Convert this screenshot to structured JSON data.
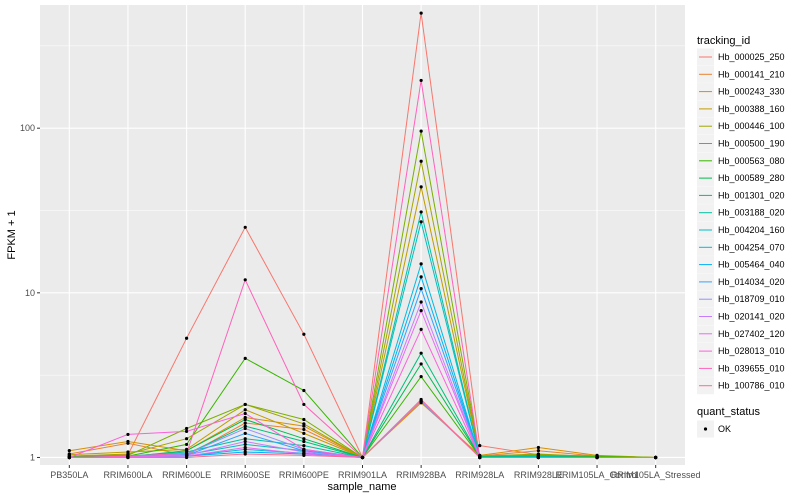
{
  "chart_data": {
    "type": "line",
    "xlabel": "sample_name",
    "ylabel": "FPKM + 1",
    "yscale": "log10",
    "ylim": [
      0.9,
      560
    ],
    "yticks": [
      {
        "value": 1,
        "label": "1"
      },
      {
        "value": 10,
        "label": "10"
      },
      {
        "value": 100,
        "label": "100"
      }
    ],
    "categories": [
      "PB350LA",
      "RRIM600LA",
      "RRIM600LE",
      "RRIM600SE",
      "RRIM600PE",
      "RRIM901LA",
      "RRIM928BA",
      "RRIM928LA",
      "RRIM928LE",
      "RRIM105LA_Control",
      "RRIM105LA_Stressed"
    ],
    "legend_title": "tracking_id",
    "series": [
      {
        "name": "Hb_000025_250",
        "color": "#F8766D",
        "values": [
          1.02,
          1.04,
          5.3,
          25.0,
          5.6,
          1.0,
          500,
          1.18,
          1.04,
          1.02,
          1.0
        ]
      },
      {
        "name": "Hb_000141_210",
        "color": "#EA8331",
        "values": [
          1.05,
          1.22,
          1.03,
          1.62,
          1.48,
          1.0,
          2.2,
          1.02,
          1.1,
          1.02,
          1.0
        ]
      },
      {
        "name": "Hb_000243_330",
        "color": "#D89000",
        "values": [
          1.1,
          1.25,
          1.1,
          1.75,
          1.55,
          1.0,
          2.15,
          1.03,
          1.15,
          1.03,
          1.0
        ]
      },
      {
        "name": "Hb_000388_160",
        "color": "#C09B00",
        "values": [
          1.04,
          1.08,
          1.12,
          1.95,
          1.4,
          1.0,
          44,
          1.02,
          1.05,
          1.01,
          1.0
        ]
      },
      {
        "name": "Hb_000446_100",
        "color": "#A3A500",
        "values": [
          1.02,
          1.05,
          1.3,
          2.1,
          1.6,
          1.0,
          63,
          1.01,
          1.03,
          1.01,
          1.0
        ]
      },
      {
        "name": "Hb_000500_190",
        "color": "#7CAE00",
        "values": [
          1.01,
          1.03,
          1.5,
          2.1,
          1.7,
          1.0,
          96,
          1.02,
          1.04,
          1.02,
          1.0
        ]
      },
      {
        "name": "Hb_000563_080",
        "color": "#39B600",
        "values": [
          1.01,
          1.02,
          1.2,
          4.0,
          2.55,
          1.0,
          3.1,
          1.01,
          1.02,
          1.01,
          1.0
        ]
      },
      {
        "name": "Hb_000589_280",
        "color": "#00BB4E",
        "values": [
          1.0,
          1.01,
          1.1,
          1.7,
          1.3,
          1.0,
          3.7,
          1.01,
          1.01,
          1.0,
          1.0
        ]
      },
      {
        "name": "Hb_001301_020",
        "color": "#00BF7D",
        "values": [
          1.0,
          1.02,
          1.05,
          1.55,
          1.25,
          1.0,
          4.3,
          1.01,
          1.02,
          1.0,
          1.0
        ]
      },
      {
        "name": "Hb_003188_020",
        "color": "#00C1A3",
        "values": [
          1.0,
          1.02,
          1.08,
          1.3,
          1.18,
          1.0,
          31,
          1.0,
          1.01,
          1.0,
          1.0
        ]
      },
      {
        "name": "Hb_004204_160",
        "color": "#00BFC4",
        "values": [
          1.0,
          1.01,
          1.04,
          1.2,
          1.1,
          1.0,
          27,
          1.0,
          1.01,
          1.0,
          1.0
        ]
      },
      {
        "name": "Hb_004254_070",
        "color": "#00BAE0",
        "values": [
          1.0,
          1.01,
          1.02,
          1.12,
          1.06,
          1.0,
          15,
          1.0,
          1.0,
          1.0,
          1.0
        ]
      },
      {
        "name": "Hb_005464_040",
        "color": "#00B0F6",
        "values": [
          1.0,
          1.0,
          1.02,
          1.08,
          1.05,
          1.0,
          12.5,
          1.0,
          1.0,
          1.0,
          1.0
        ]
      },
      {
        "name": "Hb_014034_020",
        "color": "#35A2FF",
        "values": [
          1.0,
          1.0,
          1.03,
          1.4,
          1.1,
          1.0,
          10.6,
          1.0,
          1.0,
          1.0,
          1.0
        ]
      },
      {
        "name": "Hb_018709_010",
        "color": "#9590FF",
        "values": [
          1.0,
          1.0,
          1.05,
          1.5,
          1.12,
          1.0,
          2.2,
          1.0,
          1.0,
          1.0,
          1.0
        ]
      },
      {
        "name": "Hb_020141_020",
        "color": "#C77CFF",
        "values": [
          1.0,
          1.01,
          1.03,
          1.25,
          1.08,
          1.0,
          8.8,
          1.0,
          1.0,
          1.0,
          1.0
        ]
      },
      {
        "name": "Hb_027402_120",
        "color": "#E76BF3",
        "values": [
          1.0,
          1.01,
          1.02,
          1.15,
          1.05,
          1.0,
          7.8,
          1.0,
          1.0,
          1.0,
          1.0
        ]
      },
      {
        "name": "Hb_028013_010",
        "color": "#FA62DB",
        "values": [
          1.0,
          1.38,
          1.44,
          1.85,
          1.12,
          1.0,
          6.0,
          1.0,
          1.0,
          1.0,
          1.0
        ]
      },
      {
        "name": "Hb_039655_010",
        "color": "#FF62BC",
        "values": [
          1.0,
          1.02,
          1.06,
          12.0,
          2.1,
          1.0,
          195,
          1.0,
          1.0,
          1.0,
          1.0
        ]
      },
      {
        "name": "Hb_100786_010",
        "color": "#FF6C91",
        "values": [
          1.0,
          1.0,
          1.0,
          1.05,
          1.03,
          1.0,
          2.25,
          1.0,
          1.0,
          1.0,
          1.0
        ]
      }
    ],
    "legend2": {
      "title": "quant_status",
      "items": [
        "OK"
      ]
    },
    "grid": true,
    "legend_position": "right"
  },
  "colors": {
    "panel": "#EBEBEB",
    "grid_major": "#FFFFFF",
    "point": "#000000"
  }
}
